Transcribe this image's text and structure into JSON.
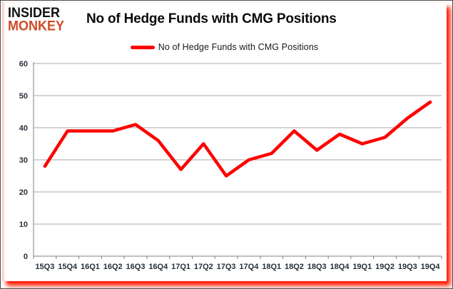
{
  "logo": {
    "line1": "INSIDER",
    "line2": "MONKEY"
  },
  "header": {
    "title": "No of Hedge Funds with CMG Positions"
  },
  "legend": {
    "label": "No of Hedge Funds with CMG Positions"
  },
  "colors": {
    "line": "#ff0000",
    "logo_accent": "#d04a27",
    "gridline": "#a9a9a9",
    "axis": "#808080",
    "tick_text": "#24303c",
    "red_shadow": "#ff1600",
    "background": "#ffffff"
  },
  "chart_data": {
    "type": "line",
    "title": "No of Hedge Funds with CMG Positions",
    "categories": [
      "15Q3",
      "15Q4",
      "16Q1",
      "16Q2",
      "16Q3",
      "16Q4",
      "17Q1",
      "17Q2",
      "17Q3",
      "17Q4",
      "18Q1",
      "18Q2",
      "18Q3",
      "18Q4",
      "19Q1",
      "19Q2",
      "19Q3",
      "19Q4"
    ],
    "series": [
      {
        "name": "No of Hedge Funds with CMG Positions",
        "color": "#ff0000",
        "values": [
          28,
          39,
          39,
          39,
          41,
          36,
          27,
          35,
          25,
          30,
          32,
          39,
          33,
          38,
          35,
          37,
          43,
          48
        ]
      }
    ],
    "xlabel": "",
    "ylabel": "",
    "ylim": [
      0,
      60
    ],
    "yticks": [
      0,
      10,
      20,
      30,
      40,
      50,
      60
    ],
    "grid": true,
    "legend_position": "top-center"
  }
}
